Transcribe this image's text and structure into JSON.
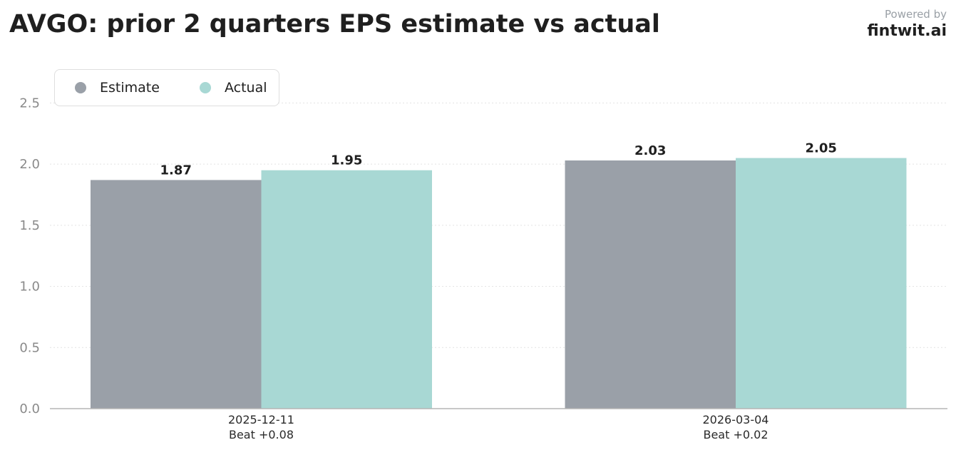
{
  "header": {
    "title": "AVGO: prior 2 quarters EPS estimate vs actual",
    "powered_by": "Powered by",
    "brand": "fintwit.ai"
  },
  "legend": {
    "placement": "top-left",
    "items": [
      {
        "label": "Estimate",
        "color": "#9aa0a8"
      },
      {
        "label": "Actual",
        "color": "#a8d8d4"
      }
    ]
  },
  "chart_data": {
    "type": "bar",
    "title": "AVGO: prior 2 quarters EPS estimate vs actual",
    "xlabel": "",
    "ylabel": "",
    "categories": [
      "2025-12-11",
      "2026-03-04"
    ],
    "category_sublabels": [
      "Beat +0.08",
      "Beat +0.02"
    ],
    "series": [
      {
        "name": "Estimate",
        "values": [
          1.87,
          2.03
        ],
        "color": "#9aa0a8"
      },
      {
        "name": "Actual",
        "values": [
          1.95,
          2.05
        ],
        "color": "#a8d8d4"
      }
    ],
    "ylim": [
      0,
      2.8
    ],
    "yticks": [
      0.0,
      0.5,
      1.0,
      1.5,
      2.0,
      2.5
    ],
    "ytick_labels": [
      "0.0",
      "0.5",
      "1.0",
      "1.5",
      "2.0",
      "2.5"
    ],
    "grid": true,
    "grid_style": "dotted horizontal",
    "legend_placement": "top-left"
  }
}
